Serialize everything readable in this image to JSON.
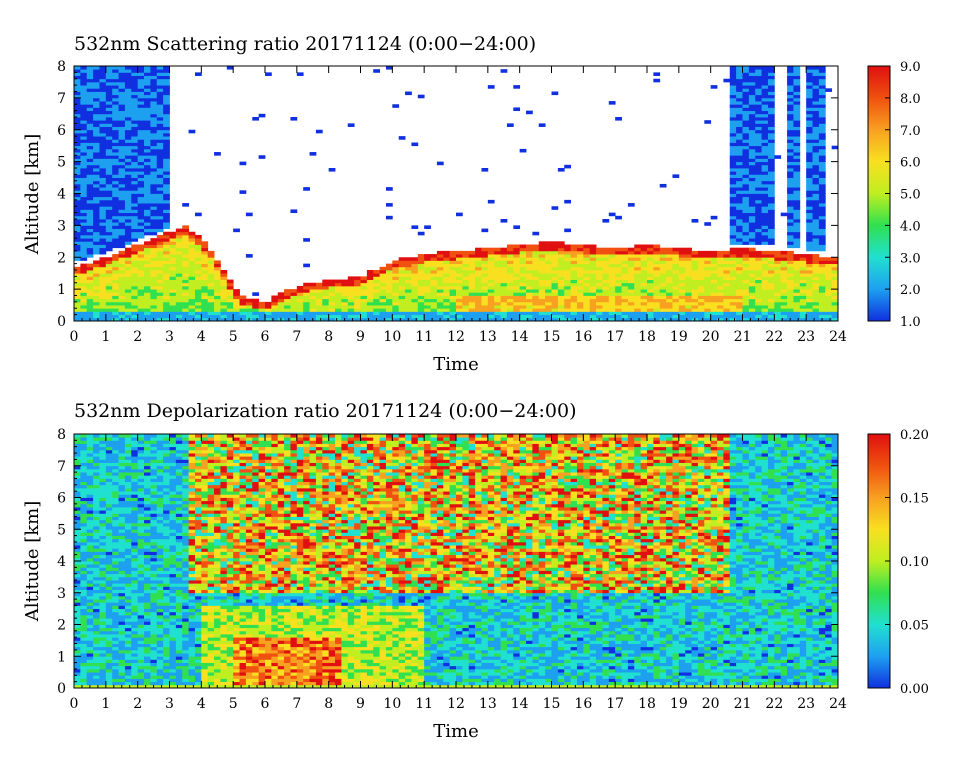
{
  "chart_data": [
    {
      "type": "heatmap",
      "title": "532nm Scattering ratio  20171124 (0:00−24:00)",
      "xlabel": "Time",
      "ylabel": "Altitude [km]",
      "xlim": [
        0,
        24
      ],
      "ylim": [
        0,
        8
      ],
      "x_ticks": [
        "0",
        "1",
        "2",
        "3",
        "4",
        "5",
        "6",
        "7",
        "8",
        "9",
        "10",
        "11",
        "12",
        "13",
        "14",
        "15",
        "16",
        "17",
        "18",
        "19",
        "20",
        "21",
        "22",
        "23",
        "24"
      ],
      "y_ticks": [
        "0",
        "1",
        "2",
        "3",
        "4",
        "5",
        "6",
        "7",
        "8"
      ],
      "colorbar": {
        "min": 1.0,
        "max": 9.0,
        "ticks": [
          "1.0",
          "2.0",
          "3.0",
          "4.0",
          "5.0",
          "6.0",
          "7.0",
          "8.0",
          "9.0"
        ],
        "colors": [
          "#1030e0",
          "#1ea0f0",
          "#20e0d0",
          "#30e050",
          "#c0ee20",
          "#f8e020",
          "#f8a020",
          "#f05010",
          "#e01010"
        ]
      },
      "cloud_top_km": [
        {
          "t": 0,
          "z": 1.7
        },
        {
          "t": 1,
          "z": 2.0
        },
        {
          "t": 2,
          "z": 2.4
        },
        {
          "t": 3,
          "z": 2.8
        },
        {
          "t": 3.5,
          "z": 3.0
        },
        {
          "t": 4,
          "z": 2.6
        },
        {
          "t": 4.6,
          "z": 1.8
        },
        {
          "t": 5.2,
          "z": 0.8
        },
        {
          "t": 6,
          "z": 0.6
        },
        {
          "t": 7,
          "z": 1.1
        },
        {
          "t": 8,
          "z": 1.3
        },
        {
          "t": 9,
          "z": 1.4
        },
        {
          "t": 10,
          "z": 1.9
        },
        {
          "t": 11,
          "z": 2.1
        },
        {
          "t": 12,
          "z": 2.2
        },
        {
          "t": 13,
          "z": 2.3
        },
        {
          "t": 14,
          "z": 2.4
        },
        {
          "t": 15,
          "z": 2.5
        },
        {
          "t": 16,
          "z": 2.4
        },
        {
          "t": 17,
          "z": 2.3
        },
        {
          "t": 18,
          "z": 2.4
        },
        {
          "t": 19,
          "z": 2.3
        },
        {
          "t": 20,
          "z": 2.2
        },
        {
          "t": 21,
          "z": 2.3
        },
        {
          "t": 22,
          "z": 2.2
        },
        {
          "t": 23,
          "z": 2.1
        },
        {
          "t": 24,
          "z": 2.0
        }
      ],
      "clear_air_columns_h": [
        [
          0,
          1.7
        ],
        [
          1.8,
          3.1
        ],
        [
          20.7,
          21.3
        ],
        [
          21.5,
          22.0
        ],
        [
          22.4,
          22.8
        ],
        [
          23.0,
          23.7
        ]
      ]
    },
    {
      "type": "heatmap",
      "title": "532nm Depolarization ratio  20171124 (0:00−24:00)",
      "xlabel": "Time",
      "ylabel": "Altitude [km]",
      "xlim": [
        0,
        24
      ],
      "ylim": [
        0,
        8
      ],
      "x_ticks": [
        "0",
        "1",
        "2",
        "3",
        "4",
        "5",
        "6",
        "7",
        "8",
        "9",
        "10",
        "11",
        "12",
        "13",
        "14",
        "15",
        "16",
        "17",
        "18",
        "19",
        "20",
        "21",
        "22",
        "23",
        "24"
      ],
      "y_ticks": [
        "0",
        "1",
        "2",
        "3",
        "4",
        "5",
        "6",
        "7",
        "8"
      ],
      "colorbar": {
        "min": 0.0,
        "max": 0.2,
        "ticks": [
          "0.00",
          "0.05",
          "0.10",
          "0.15",
          "0.20"
        ],
        "colors": [
          "#1030e0",
          "#1ea0f0",
          "#20e0d0",
          "#30e050",
          "#c0ee20",
          "#f8e020",
          "#f8a020",
          "#f05010",
          "#e01010"
        ]
      },
      "noisy_region_h": [
        3.6,
        20.6
      ],
      "noisy_region_min_km": 3.0
    }
  ]
}
